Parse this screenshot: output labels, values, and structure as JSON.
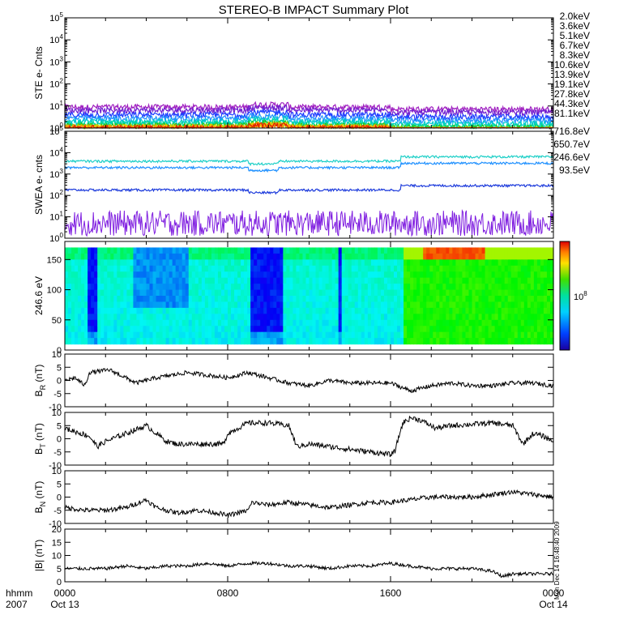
{
  "title": "STEREO-B IMPACT Summary Plot",
  "x_axis": {
    "tick_labels": [
      "0000",
      "0800",
      "1600",
      "0000"
    ],
    "date_labels": [
      "Oct 13",
      "",
      "",
      "Oct 14"
    ],
    "corner_label_top": "hhmm",
    "corner_label_bottom": "2007"
  },
  "side_note": "Mon Dec 14 16:48:40 2009",
  "chart_data": [
    {
      "type": "line",
      "name": "ste",
      "ylabel": "STE e- Cnts",
      "yscale": "log",
      "ylim": [
        1,
        100000
      ],
      "y_tick_exponents": [
        "0",
        "1",
        "2",
        "3",
        "4",
        "5"
      ],
      "x_range_hours": [
        0,
        24
      ],
      "series": [
        {
          "name": "2.0keV",
          "color": "#a020c0",
          "level": 9.0
        },
        {
          "name": "3.6keV",
          "color": "#7020d0",
          "level": 6.5
        },
        {
          "name": "5.1keV",
          "color": "#1e3cff",
          "level": 4.0
        },
        {
          "name": "6.7keV",
          "color": "#1e90ff",
          "level": 2.8
        },
        {
          "name": "8.3keV",
          "color": "#00c8d0",
          "level": 2.0
        },
        {
          "name": "10.6keV",
          "color": "#00d8a0",
          "level": 1.6
        },
        {
          "name": "13.9keV",
          "color": "#20c820",
          "level": 1.3
        },
        {
          "name": "19.1keV",
          "color": "#b8d000",
          "level": 1.15
        },
        {
          "name": "27.8keV",
          "color": "#ffc800",
          "level": 1.08
        },
        {
          "name": "44.3keV",
          "color": "#ff8c00",
          "level": 1.04
        },
        {
          "name": "81.1keV",
          "color": "#e02000",
          "level": 1.02
        }
      ]
    },
    {
      "type": "line",
      "name": "swea",
      "ylabel": "SWEA e- cnts",
      "yscale": "log",
      "ylim": [
        1,
        100000
      ],
      "y_tick_exponents": [
        "0",
        "1",
        "2",
        "3",
        "4",
        "5"
      ],
      "x_range_hours": [
        0,
        24
      ],
      "series": [
        {
          "name": "1716.8eV",
          "color": "#8020e0",
          "level": 5
        },
        {
          "name": "650.7eV",
          "color": "#1e3cdc",
          "level": 180
        },
        {
          "name": "246.6eV",
          "color": "#1e90ff",
          "level": 2000
        },
        {
          "name": "93.5eV",
          "color": "#20d0c8",
          "level": 4000
        }
      ]
    },
    {
      "type": "heatmap",
      "name": "pad",
      "ylabel": "246.6 eV",
      "ylim": [
        0,
        180
      ],
      "y_ticks": [
        0,
        50,
        100,
        150
      ],
      "y_extent": [
        10,
        170
      ],
      "x_range_hours": [
        0,
        24
      ],
      "colorbar_label": "10",
      "colorbar_exponent": "8"
    },
    {
      "type": "line",
      "name": "br",
      "ylabel": "B",
      "ylabel_sub": "R",
      "ylabel_unit": " (nT)",
      "ylim": [
        -10,
        10
      ],
      "y_ticks": [
        -10,
        -5,
        0,
        5,
        10
      ],
      "x_range_hours": [
        0,
        24
      ],
      "keypoints": [
        [
          0,
          0
        ],
        [
          0.5,
          1
        ],
        [
          1.0,
          -2
        ],
        [
          1.2,
          3
        ],
        [
          2.2,
          4
        ],
        [
          3,
          1
        ],
        [
          3.5,
          -1
        ],
        [
          4.5,
          1
        ],
        [
          6,
          3
        ],
        [
          7,
          2
        ],
        [
          8,
          1
        ],
        [
          9,
          3
        ],
        [
          10,
          1
        ],
        [
          11,
          -1
        ],
        [
          12,
          -2
        ],
        [
          13,
          0
        ],
        [
          14,
          -1
        ],
        [
          15,
          -1
        ],
        [
          16,
          -1
        ],
        [
          17,
          -4
        ],
        [
          18,
          -2
        ],
        [
          19,
          -1
        ],
        [
          20,
          -2
        ],
        [
          21,
          -2
        ],
        [
          22,
          -1
        ],
        [
          23,
          -1
        ],
        [
          24,
          -2
        ]
      ],
      "noise": 0.8
    },
    {
      "type": "line",
      "name": "bt",
      "ylabel": "B",
      "ylabel_sub": "T",
      "ylabel_unit": " (nT)",
      "ylim": [
        -10,
        10
      ],
      "y_ticks": [
        -10,
        -5,
        0,
        5,
        10
      ],
      "x_range_hours": [
        0,
        24
      ],
      "keypoints": [
        [
          0,
          4
        ],
        [
          1.2,
          1
        ],
        [
          1.6,
          -3
        ],
        [
          2,
          -1
        ],
        [
          3,
          2
        ],
        [
          4,
          5
        ],
        [
          4.5,
          2
        ],
        [
          5,
          -1
        ],
        [
          5.5,
          -2
        ],
        [
          6,
          -2
        ],
        [
          7.8,
          -2
        ],
        [
          8,
          2
        ],
        [
          9,
          6
        ],
        [
          10,
          6
        ],
        [
          11,
          5
        ],
        [
          11.4,
          -3
        ],
        [
          12,
          -2
        ],
        [
          13,
          -3
        ],
        [
          14,
          -4
        ],
        [
          15,
          -5
        ],
        [
          16,
          -6
        ],
        [
          16.2,
          -5
        ],
        [
          16.6,
          6
        ],
        [
          17,
          8
        ],
        [
          17.5,
          7
        ],
        [
          18.2,
          4
        ],
        [
          19,
          5
        ],
        [
          21,
          6
        ],
        [
          22,
          5
        ],
        [
          22.5,
          -2
        ],
        [
          23,
          2
        ],
        [
          23.5,
          1
        ],
        [
          24,
          -1
        ]
      ],
      "noise": 1.0
    },
    {
      "type": "line",
      "name": "bn",
      "ylabel": "B",
      "ylabel_sub": "N",
      "ylabel_unit": " (nT)",
      "ylim": [
        -10,
        10
      ],
      "y_ticks": [
        -10,
        -5,
        0,
        5,
        10
      ],
      "x_range_hours": [
        0,
        24
      ],
      "keypoints": [
        [
          0,
          -4
        ],
        [
          1,
          -5
        ],
        [
          2,
          -5
        ],
        [
          3,
          -4
        ],
        [
          4,
          -1
        ],
        [
          4.5,
          -4
        ],
        [
          5.5,
          -6
        ],
        [
          6.5,
          -5
        ],
        [
          7.5,
          -6
        ],
        [
          8,
          -7
        ],
        [
          9,
          -5
        ],
        [
          9.2,
          -2
        ],
        [
          10,
          -3
        ],
        [
          11,
          -2
        ],
        [
          12,
          -3
        ],
        [
          13,
          -4
        ],
        [
          14,
          -3
        ],
        [
          15,
          -2
        ],
        [
          16,
          -2
        ],
        [
          17,
          -1
        ],
        [
          18,
          0
        ],
        [
          19,
          0
        ],
        [
          20,
          0
        ],
        [
          21,
          1
        ],
        [
          22,
          2
        ],
        [
          23,
          1
        ],
        [
          24,
          0
        ]
      ],
      "noise": 0.9
    },
    {
      "type": "line",
      "name": "bmag",
      "ylabel": "|B| (nT)",
      "ylim": [
        0,
        20
      ],
      "y_ticks": [
        0,
        5,
        10,
        15,
        20
      ],
      "x_range_hours": [
        0,
        24
      ],
      "keypoints": [
        [
          0,
          5
        ],
        [
          2,
          5
        ],
        [
          3,
          6
        ],
        [
          4,
          5
        ],
        [
          5,
          6
        ],
        [
          6,
          6
        ],
        [
          7,
          7
        ],
        [
          8,
          6
        ],
        [
          9,
          7
        ],
        [
          10,
          7
        ],
        [
          11,
          6
        ],
        [
          12,
          6
        ],
        [
          13,
          5
        ],
        [
          14,
          6
        ],
        [
          15,
          6
        ],
        [
          16,
          7
        ],
        [
          17,
          6
        ],
        [
          18,
          5
        ],
        [
          19,
          5
        ],
        [
          20,
          5
        ],
        [
          21,
          4
        ],
        [
          21.5,
          2
        ],
        [
          22,
          3
        ],
        [
          23,
          3
        ],
        [
          24,
          3
        ]
      ],
      "noise": 0.6
    }
  ]
}
